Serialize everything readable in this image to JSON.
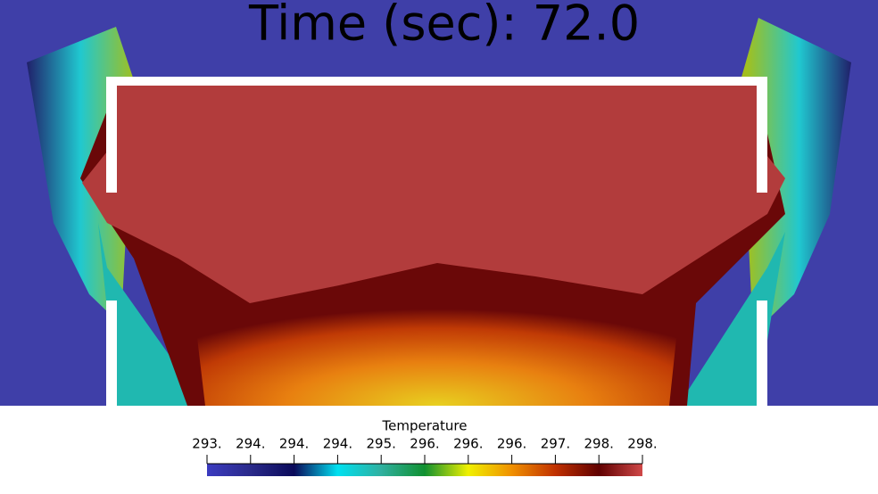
{
  "title": "Time (sec): 72.0",
  "colorbar": {
    "title": "Temperature",
    "tick_labels": [
      "293.",
      "294.",
      "294.",
      "294.",
      "295.",
      "296.",
      "296.",
      "296.",
      "297.",
      "298.",
      "298."
    ]
  }
}
